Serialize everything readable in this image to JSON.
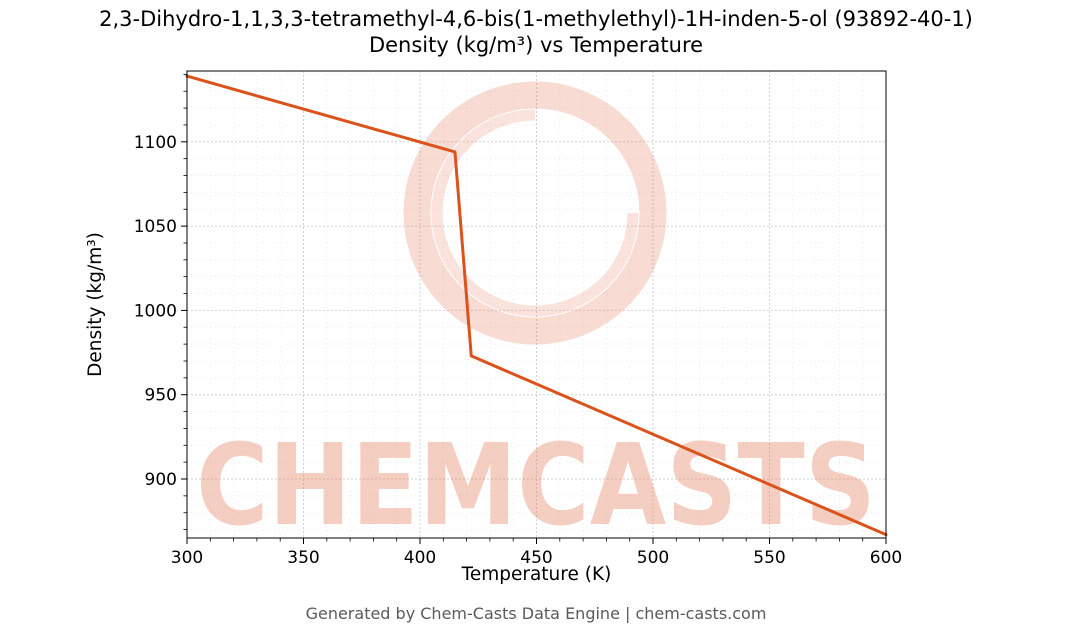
{
  "page": {
    "title_line1": "2,3-Dihydro-1,1,3,3-tetramethyl-4,6-bis(1-methylethyl)-1H-inden-5-ol (93892-40-1)",
    "title_line2": "Density (kg/m³) vs Temperature",
    "footer": "Generated by Chem-Casts Data Engine | chem-casts.com"
  },
  "watermark": {
    "text": "CHEMCASTS",
    "color": "#e06038",
    "text_opacity": 0.3,
    "ring_opacity": 0.22
  },
  "chart_data": {
    "type": "line",
    "title": "2,3-Dihydro-1,1,3,3-tetramethyl-4,6-bis(1-methylethyl)-1H-inden-5-ol (93892-40-1) — Density (kg/m³) vs Temperature",
    "xlabel": "Temperature (K)",
    "ylabel": "Density (kg/m³)",
    "series": [
      {
        "name": "density",
        "x": [
          300,
          415,
          422,
          600
        ],
        "y": [
          1139,
          1094,
          973,
          867
        ]
      }
    ],
    "xlim": [
      300,
      600
    ],
    "ylim": [
      865,
      1142
    ],
    "xticks": [
      300,
      350,
      400,
      450,
      500,
      550,
      600
    ],
    "yticks": [
      900,
      950,
      1000,
      1050,
      1100
    ],
    "minor_step_x": 10,
    "minor_step_y": 10,
    "grid": true,
    "legend": "none",
    "line_color": "#d9531b",
    "line_width": 3
  }
}
